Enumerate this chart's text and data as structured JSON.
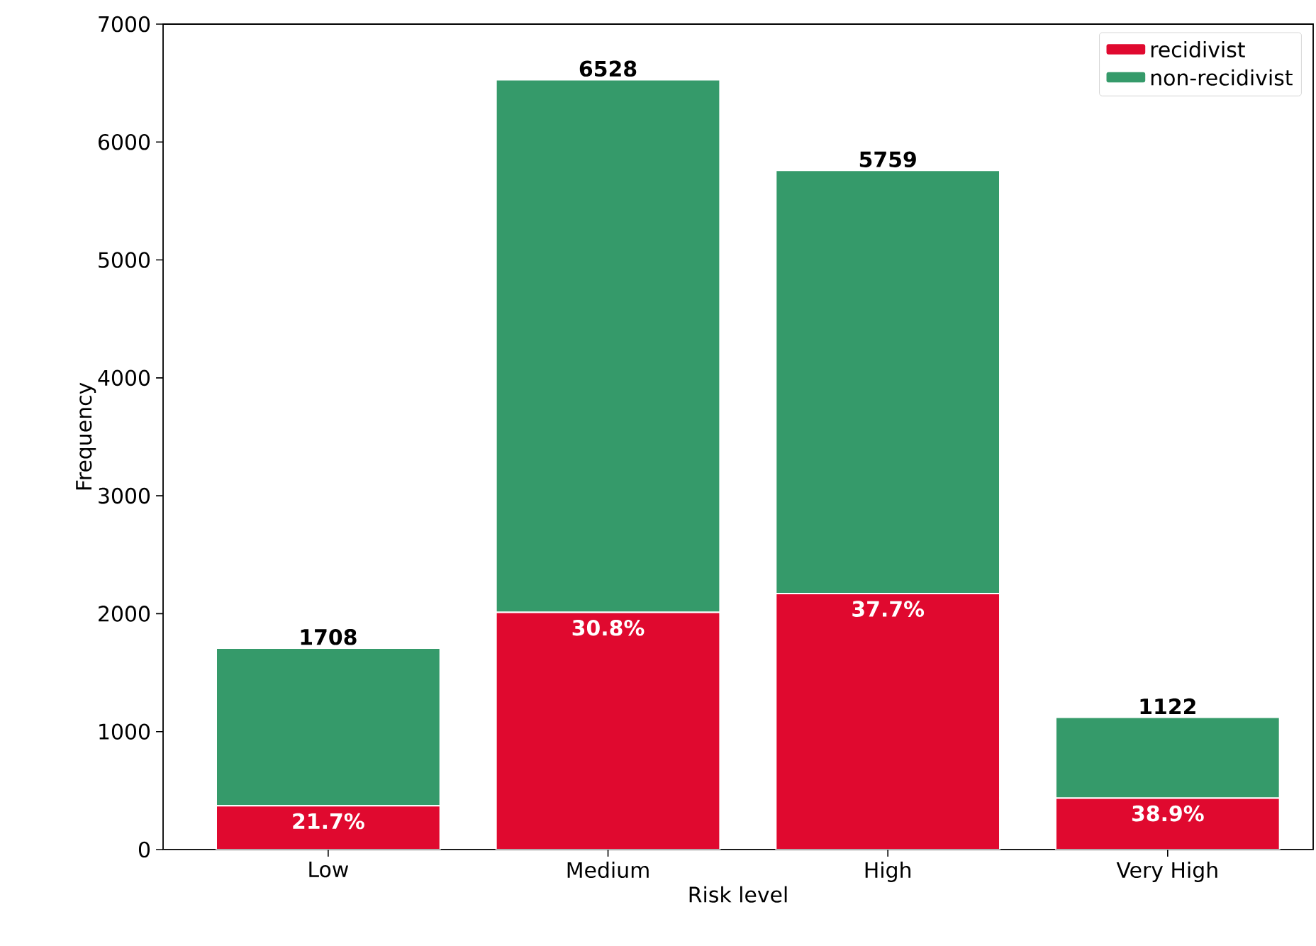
{
  "chart_data": {
    "type": "bar",
    "stacked": true,
    "xlabel": "Risk level",
    "ylabel": "Frequency",
    "categories": [
      "Low",
      "Medium",
      "High",
      "Very High"
    ],
    "series": [
      {
        "name": "recidivist",
        "color": "#e0092f",
        "values": [
          371,
          2011,
          2171,
          436
        ]
      },
      {
        "name": "non-recidivist",
        "color": "#359a6a",
        "values": [
          1337,
          4517,
          3588,
          686
        ]
      }
    ],
    "annotations": [
      {
        "text": "21.7%",
        "x": "Low",
        "y": 371
      },
      {
        "text": "30.8%",
        "x": "Medium",
        "y": 2011
      },
      {
        "text": "37.7%",
        "x": "High",
        "y": 2171
      },
      {
        "text": "38.9%",
        "x": "Very High",
        "y": 436
      }
    ],
    "totals": [
      "1708",
      "6528",
      "5759",
      "1122"
    ],
    "ylim": [
      0,
      7000
    ],
    "yticks": [
      0,
      1000,
      2000,
      3000,
      4000,
      5000,
      6000,
      7000
    ],
    "legend": "top right",
    "grid": false
  }
}
